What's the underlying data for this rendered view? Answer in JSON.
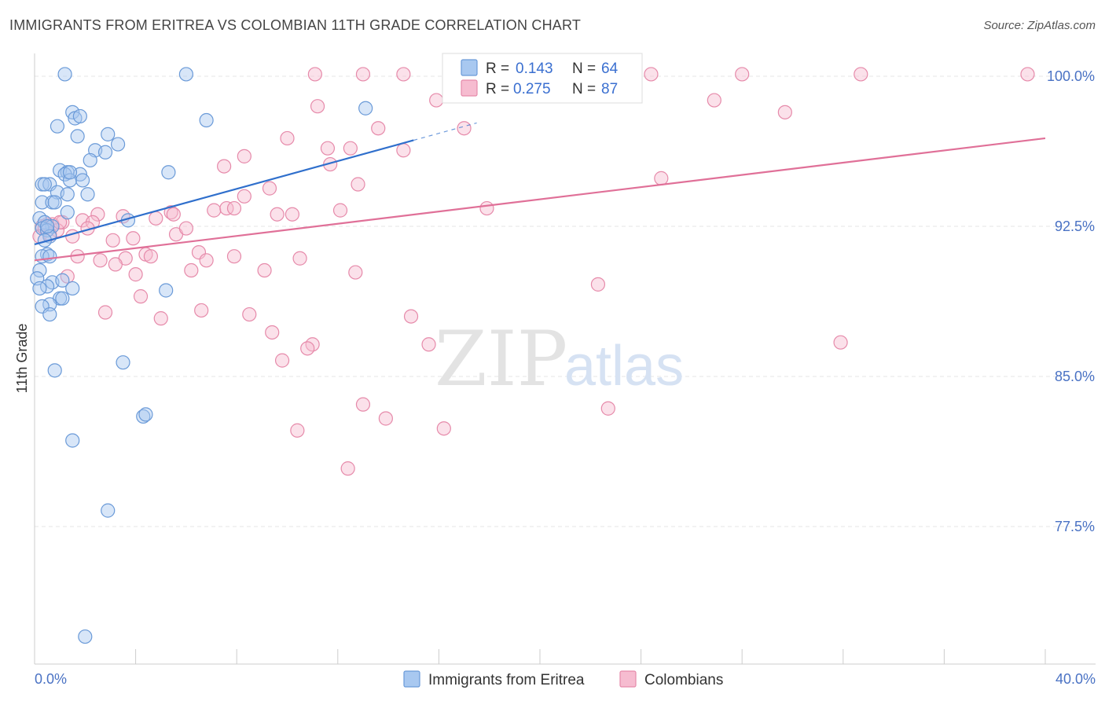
{
  "header": {
    "title": "IMMIGRANTS FROM ERITREA VS COLOMBIAN 11TH GRADE CORRELATION CHART",
    "source": "Source: ZipAtlas.com"
  },
  "watermark": {
    "zip": "ZIP",
    "atlas": "atlas"
  },
  "colors": {
    "eritrea_fill": "#a8c8f0",
    "eritrea_stroke": "#6a9ad8",
    "eritrea_line": "#2f6fcc",
    "colombian_fill": "#f6bcd0",
    "colombian_stroke": "#e68aaa",
    "colombian_line": "#e07098",
    "grid": "#e6e6e6",
    "tick_label": "#4a72c4"
  },
  "legend": {
    "rows": [
      {
        "r_label": "R = ",
        "r_value": "0.143",
        "n_label": "N = ",
        "n_value": "64"
      },
      {
        "r_label": "R = ",
        "r_value": "0.275",
        "n_label": "N = ",
        "n_value": "87"
      }
    ]
  },
  "chart_data": {
    "type": "scatter",
    "title": "IMMIGRANTS FROM ERITREA VS COLOMBIAN 11TH GRADE CORRELATION CHART",
    "ylabel": "11th Grade",
    "xlim": [
      0,
      40
    ],
    "ylim": [
      71,
      100.5
    ],
    "x_tick_labels": [
      "0.0%",
      "40.0%"
    ],
    "y_ticks": [
      100.0,
      92.5,
      85.0,
      77.5
    ],
    "y_tick_labels": [
      "100.0%",
      "92.5%",
      "85.0%",
      "77.5%"
    ],
    "grid": true,
    "legend_position": "top-center",
    "series": [
      {
        "name": "Immigrants from Eritrea",
        "R": 0.143,
        "N": 64,
        "trend": {
          "x0": 0,
          "y0": 91.6,
          "x1": 15.0,
          "y1": 96.8,
          "dash_to_x": 17.5
        },
        "points": [
          [
            1.2,
            100.1
          ],
          [
            6.0,
            100.1
          ],
          [
            13.1,
            98.4
          ],
          [
            1.5,
            98.2
          ],
          [
            1.6,
            97.9
          ],
          [
            1.8,
            98.0
          ],
          [
            0.9,
            97.5
          ],
          [
            6.8,
            97.8
          ],
          [
            2.9,
            97.1
          ],
          [
            1.7,
            97.0
          ],
          [
            3.3,
            96.6
          ],
          [
            2.4,
            96.3
          ],
          [
            2.8,
            96.2
          ],
          [
            2.2,
            95.8
          ],
          [
            1.0,
            95.3
          ],
          [
            1.3,
            95.2
          ],
          [
            1.2,
            95.1
          ],
          [
            5.3,
            95.2
          ],
          [
            1.8,
            95.1
          ],
          [
            1.4,
            94.8
          ],
          [
            1.9,
            94.8
          ],
          [
            0.3,
            94.6
          ],
          [
            0.6,
            94.6
          ],
          [
            0.9,
            94.2
          ],
          [
            1.3,
            94.1
          ],
          [
            2.1,
            94.1
          ],
          [
            0.3,
            93.7
          ],
          [
            0.7,
            93.7
          ],
          [
            0.8,
            93.7
          ],
          [
            1.3,
            93.2
          ],
          [
            0.2,
            92.9
          ],
          [
            0.4,
            92.7
          ],
          [
            0.7,
            92.5
          ],
          [
            0.3,
            92.4
          ],
          [
            0.5,
            92.3
          ],
          [
            3.7,
            92.8
          ],
          [
            0.6,
            92.0
          ],
          [
            0.4,
            91.8
          ],
          [
            0.5,
            91.1
          ],
          [
            0.3,
            91.0
          ],
          [
            0.6,
            91.0
          ],
          [
            0.2,
            90.3
          ],
          [
            0.1,
            89.9
          ],
          [
            0.7,
            89.7
          ],
          [
            1.1,
            89.8
          ],
          [
            0.5,
            89.5
          ],
          [
            1.5,
            89.4
          ],
          [
            5.2,
            89.3
          ],
          [
            1.0,
            88.9
          ],
          [
            0.6,
            88.6
          ],
          [
            0.3,
            88.5
          ],
          [
            0.6,
            88.1
          ],
          [
            3.5,
            85.7
          ],
          [
            0.8,
            85.3
          ],
          [
            4.3,
            83.0
          ],
          [
            4.4,
            83.1
          ],
          [
            1.5,
            81.8
          ],
          [
            2.9,
            78.3
          ],
          [
            2.0,
            72.0
          ],
          [
            1.1,
            88.9
          ],
          [
            1.4,
            95.2
          ],
          [
            0.5,
            92.5
          ],
          [
            0.4,
            94.6
          ],
          [
            0.2,
            89.4
          ]
        ]
      },
      {
        "name": "Colombians",
        "R": 0.275,
        "N": 87,
        "trend": {
          "x0": 0,
          "y0": 90.8,
          "x1": 40,
          "y1": 96.9
        },
        "points": [
          [
            11.1,
            100.1
          ],
          [
            13.0,
            100.1
          ],
          [
            14.6,
            100.1
          ],
          [
            24.4,
            100.1
          ],
          [
            28.0,
            100.1
          ],
          [
            32.7,
            100.1
          ],
          [
            39.3,
            100.1
          ],
          [
            15.9,
            98.8
          ],
          [
            26.9,
            98.8
          ],
          [
            11.2,
            98.5
          ],
          [
            29.7,
            98.2
          ],
          [
            13.6,
            97.4
          ],
          [
            17.0,
            97.4
          ],
          [
            10.0,
            96.9
          ],
          [
            11.6,
            96.4
          ],
          [
            12.5,
            96.4
          ],
          [
            14.6,
            96.3
          ],
          [
            8.3,
            96.0
          ],
          [
            11.7,
            95.6
          ],
          [
            7.5,
            95.5
          ],
          [
            24.8,
            94.9
          ],
          [
            12.8,
            94.6
          ],
          [
            9.3,
            94.4
          ],
          [
            8.3,
            94.0
          ],
          [
            17.9,
            93.4
          ],
          [
            7.1,
            93.3
          ],
          [
            7.6,
            93.4
          ],
          [
            7.9,
            93.4
          ],
          [
            12.1,
            93.3
          ],
          [
            3.5,
            93.0
          ],
          [
            5.4,
            93.2
          ],
          [
            9.6,
            93.1
          ],
          [
            10.2,
            93.1
          ],
          [
            2.5,
            93.1
          ],
          [
            4.8,
            92.9
          ],
          [
            5.5,
            93.1
          ],
          [
            1.9,
            92.8
          ],
          [
            2.3,
            92.7
          ],
          [
            1.1,
            92.7
          ],
          [
            0.7,
            92.6
          ],
          [
            0.3,
            92.5
          ],
          [
            0.5,
            92.6
          ],
          [
            0.9,
            92.3
          ],
          [
            5.6,
            92.1
          ],
          [
            6.0,
            92.4
          ],
          [
            1.5,
            92.0
          ],
          [
            3.1,
            91.8
          ],
          [
            3.9,
            91.9
          ],
          [
            0.2,
            92.0
          ],
          [
            4.4,
            91.1
          ],
          [
            6.5,
            91.2
          ],
          [
            2.6,
            90.8
          ],
          [
            3.6,
            90.9
          ],
          [
            1.7,
            91.0
          ],
          [
            4.6,
            91.0
          ],
          [
            7.9,
            91.0
          ],
          [
            10.5,
            90.9
          ],
          [
            6.8,
            90.8
          ],
          [
            3.2,
            90.6
          ],
          [
            6.2,
            90.3
          ],
          [
            9.1,
            90.3
          ],
          [
            12.7,
            90.2
          ],
          [
            1.3,
            90.0
          ],
          [
            4.0,
            90.1
          ],
          [
            22.3,
            89.6
          ],
          [
            4.2,
            89.0
          ],
          [
            2.8,
            88.2
          ],
          [
            6.6,
            88.3
          ],
          [
            8.5,
            88.1
          ],
          [
            5.0,
            87.9
          ],
          [
            14.9,
            88.0
          ],
          [
            9.4,
            87.2
          ],
          [
            31.9,
            86.7
          ],
          [
            11.0,
            86.6
          ],
          [
            10.8,
            86.4
          ],
          [
            15.6,
            86.6
          ],
          [
            9.8,
            85.8
          ],
          [
            13.0,
            83.6
          ],
          [
            13.9,
            82.9
          ],
          [
            22.7,
            83.4
          ],
          [
            10.4,
            82.3
          ],
          [
            16.2,
            82.4
          ],
          [
            12.4,
            80.4
          ],
          [
            0.4,
            92.4
          ],
          [
            1.0,
            92.7
          ],
          [
            2.1,
            92.4
          ],
          [
            0.6,
            92.1
          ]
        ]
      }
    ]
  },
  "bottom_legend": {
    "items": [
      {
        "label": "Immigrants from Eritrea"
      },
      {
        "label": "Colombians"
      }
    ]
  }
}
